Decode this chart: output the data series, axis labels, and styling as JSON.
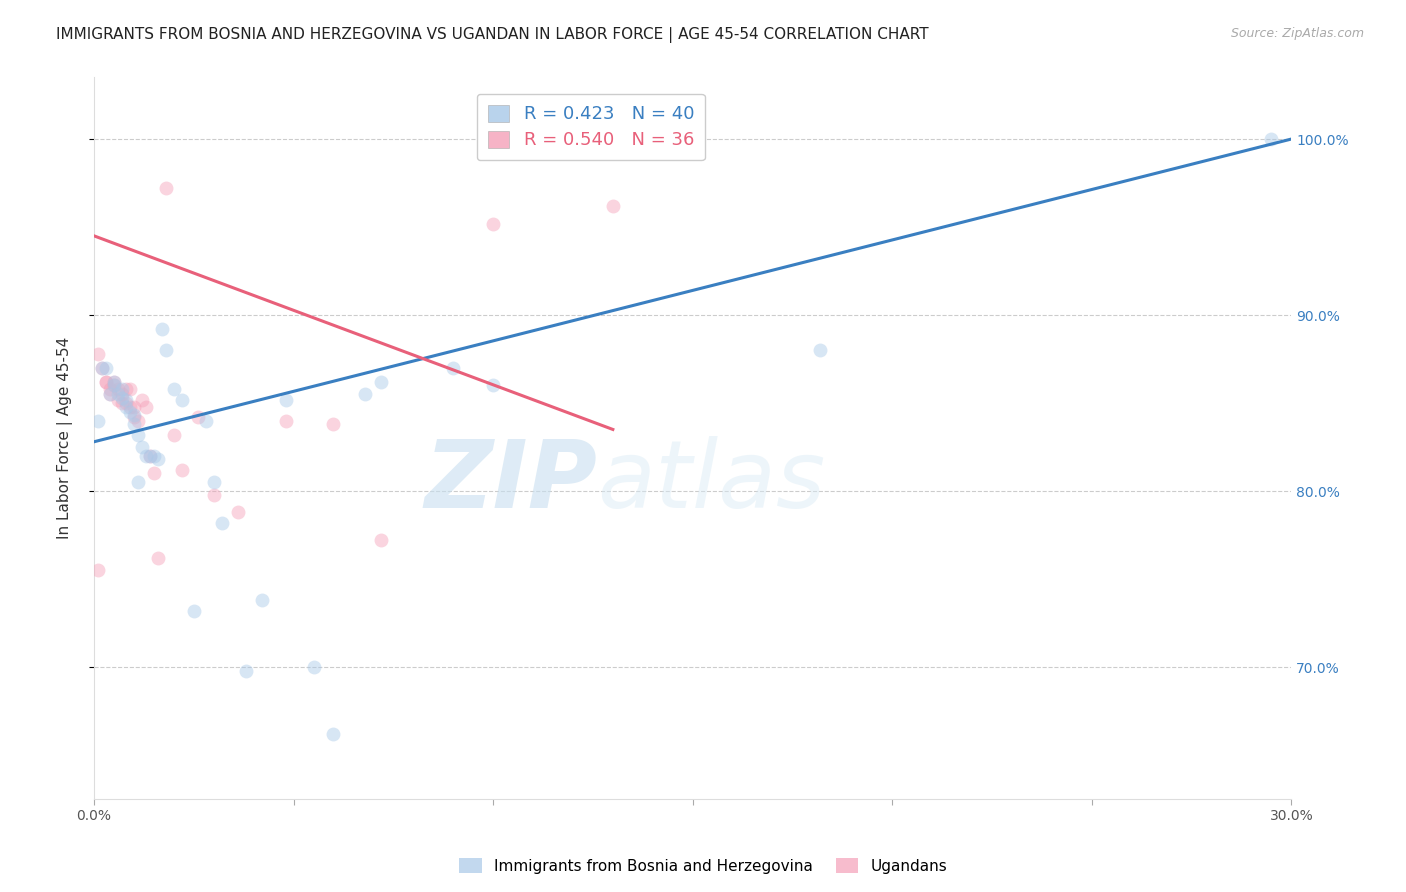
{
  "title": "IMMIGRANTS FROM BOSNIA AND HERZEGOVINA VS UGANDAN IN LABOR FORCE | AGE 45-54 CORRELATION CHART",
  "source": "Source: ZipAtlas.com",
  "ylabel": "In Labor Force | Age 45-54",
  "x_min": 0.0,
  "x_max": 0.3,
  "y_min": 0.625,
  "y_max": 1.035,
  "yticks": [
    0.7,
    0.8,
    0.9,
    1.0
  ],
  "ytick_labels": [
    "70.0%",
    "80.0%",
    "90.0%",
    "100.0%"
  ],
  "xticks": [
    0.0,
    0.05,
    0.1,
    0.15,
    0.2,
    0.25,
    0.3
  ],
  "xtick_labels": [
    "0.0%",
    "",
    "",
    "",
    "",
    "",
    "30.0%"
  ],
  "blue_color": "#a8c8e8",
  "pink_color": "#f4a0b8",
  "blue_line_color": "#3a7fc1",
  "pink_line_color": "#e8607a",
  "R_blue": 0.423,
  "N_blue": 40,
  "R_pink": 0.54,
  "N_pink": 36,
  "blue_line_x0": 0.0,
  "blue_line_y0": 0.828,
  "blue_line_x1": 0.3,
  "blue_line_y1": 1.0,
  "pink_line_x0": 0.0,
  "pink_line_y0": 0.945,
  "pink_line_x1": 0.13,
  "pink_line_y1": 0.835,
  "blue_x": [
    0.001,
    0.002,
    0.003,
    0.004,
    0.005,
    0.005,
    0.006,
    0.007,
    0.007,
    0.008,
    0.008,
    0.009,
    0.01,
    0.01,
    0.011,
    0.011,
    0.012,
    0.013,
    0.014,
    0.015,
    0.016,
    0.017,
    0.018,
    0.02,
    0.022,
    0.025,
    0.028,
    0.03,
    0.032,
    0.038,
    0.042,
    0.048,
    0.055,
    0.06,
    0.068,
    0.072,
    0.09,
    0.1,
    0.182,
    0.295
  ],
  "blue_y": [
    0.84,
    0.87,
    0.87,
    0.855,
    0.86,
    0.862,
    0.855,
    0.853,
    0.858,
    0.848,
    0.852,
    0.845,
    0.843,
    0.838,
    0.832,
    0.805,
    0.825,
    0.82,
    0.82,
    0.82,
    0.818,
    0.892,
    0.88,
    0.858,
    0.852,
    0.732,
    0.84,
    0.805,
    0.782,
    0.698,
    0.738,
    0.852,
    0.7,
    0.662,
    0.855,
    0.862,
    0.87,
    0.86,
    0.88,
    1.0
  ],
  "pink_x": [
    0.001,
    0.001,
    0.002,
    0.003,
    0.003,
    0.004,
    0.004,
    0.005,
    0.005,
    0.006,
    0.006,
    0.007,
    0.007,
    0.008,
    0.008,
    0.009,
    0.009,
    0.01,
    0.01,
    0.011,
    0.012,
    0.013,
    0.014,
    0.015,
    0.016,
    0.018,
    0.02,
    0.022,
    0.026,
    0.03,
    0.036,
    0.048,
    0.06,
    0.072,
    0.1,
    0.13
  ],
  "pink_y": [
    0.755,
    0.878,
    0.87,
    0.862,
    0.862,
    0.858,
    0.855,
    0.86,
    0.862,
    0.858,
    0.852,
    0.855,
    0.85,
    0.858,
    0.85,
    0.848,
    0.858,
    0.848,
    0.842,
    0.84,
    0.852,
    0.848,
    0.82,
    0.81,
    0.762,
    0.972,
    0.832,
    0.812,
    0.842,
    0.798,
    0.788,
    0.84,
    0.838,
    0.772,
    0.952,
    0.962
  ],
  "watermark_zip": "ZIP",
  "watermark_atlas": "atlas",
  "title_fontsize": 11,
  "axis_label_fontsize": 11,
  "tick_fontsize": 10,
  "legend_fontsize": 13,
  "source_fontsize": 9,
  "marker_size": 100,
  "marker_alpha": 0.45,
  "line_width": 2.2
}
